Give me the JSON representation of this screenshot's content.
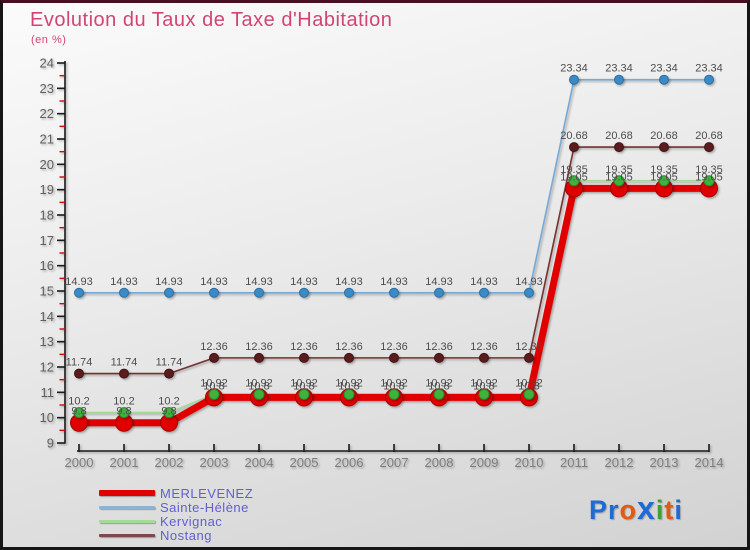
{
  "title": "Evolution du Taux de Taxe d'Habitation",
  "subtitle": "(en %)",
  "colors": {
    "title": "#d24572",
    "legend_text": "#6060d0",
    "axis": "#1a1a1a",
    "minor_tick": "#cc1111",
    "tick_label": "#5e5e5e",
    "year_label": "#7d7d7d",
    "data_label": "#4d4d4d"
  },
  "chart_data": {
    "type": "line",
    "x": [
      2000,
      2001,
      2002,
      2003,
      2004,
      2005,
      2006,
      2007,
      2008,
      2009,
      2010,
      2011,
      2012,
      2013,
      2014
    ],
    "series": [
      {
        "name": "MERLEVENEZ",
        "values": [
          9.8,
          9.8,
          9.8,
          10.8,
          10.8,
          10.8,
          10.8,
          10.8,
          10.8,
          10.8,
          10.8,
          19.05,
          19.05,
          19.05,
          19.05
        ],
        "line_color": "#e10000",
        "line_width": 7,
        "marker_color": "#e10000",
        "marker_stroke": "#a00000",
        "marker_radius": 8.5,
        "legend_color": "#e10000",
        "legend_thickness": 6,
        "line_z": 4,
        "marker_z": 3
      },
      {
        "name": "Sainte-Hélène",
        "values": [
          14.93,
          14.93,
          14.93,
          14.93,
          14.93,
          14.93,
          14.93,
          14.93,
          14.93,
          14.93,
          14.93,
          23.34,
          23.34,
          23.34,
          23.34
        ],
        "line_color": "#76a9d4",
        "line_width": 1.6,
        "marker_color": "#3b8ac4",
        "marker_stroke": "#2a6ea3",
        "marker_radius": 4.5,
        "legend_color": "#8ab4d8",
        "legend_thickness": 3,
        "line_z": 1,
        "marker_z": 1
      },
      {
        "name": "Kervignac",
        "values": [
          10.2,
          10.2,
          10.2,
          10.92,
          10.92,
          10.92,
          10.92,
          10.92,
          10.92,
          10.92,
          10.92,
          19.35,
          19.35,
          19.35,
          19.35
        ],
        "line_color": "#a3d798",
        "line_width": 1.6,
        "marker_color": "#3eb33e",
        "marker_stroke": "#2a8a2a",
        "marker_radius": 5,
        "legend_color": "#a6d99a",
        "legend_thickness": 3,
        "line_z": 3,
        "marker_z": 4
      },
      {
        "name": "Nostang",
        "values": [
          11.74,
          11.74,
          11.74,
          12.36,
          12.36,
          12.36,
          12.36,
          12.36,
          12.36,
          12.36,
          12.36,
          20.68,
          20.68,
          20.68,
          20.68
        ],
        "line_color": "#743030",
        "line_width": 1.6,
        "marker_color": "#5a1d1d",
        "marker_stroke": "#401212",
        "marker_radius": 4.5,
        "legend_color": "#7d4848",
        "legend_thickness": 3,
        "line_z": 2,
        "marker_z": 2
      }
    ],
    "ylim": [
      9,
      24
    ],
    "y_major_step": 1,
    "y_minor_step": 0.5,
    "grid": false,
    "legend_position": "bottom-left",
    "point_labels": true
  },
  "logo": {
    "letters": [
      {
        "char": "P",
        "color": "#1e6bd6"
      },
      {
        "char": "r",
        "color": "#1e6bd6"
      },
      {
        "char": "o",
        "color": "#e4590e"
      },
      {
        "char": "x",
        "color": "#1e6bd6",
        "big": true
      },
      {
        "char": "i",
        "color": "#3fa03b"
      },
      {
        "char": "t",
        "color": "#e4590e"
      },
      {
        "char": "i",
        "color": "#1e6bd6"
      }
    ]
  }
}
